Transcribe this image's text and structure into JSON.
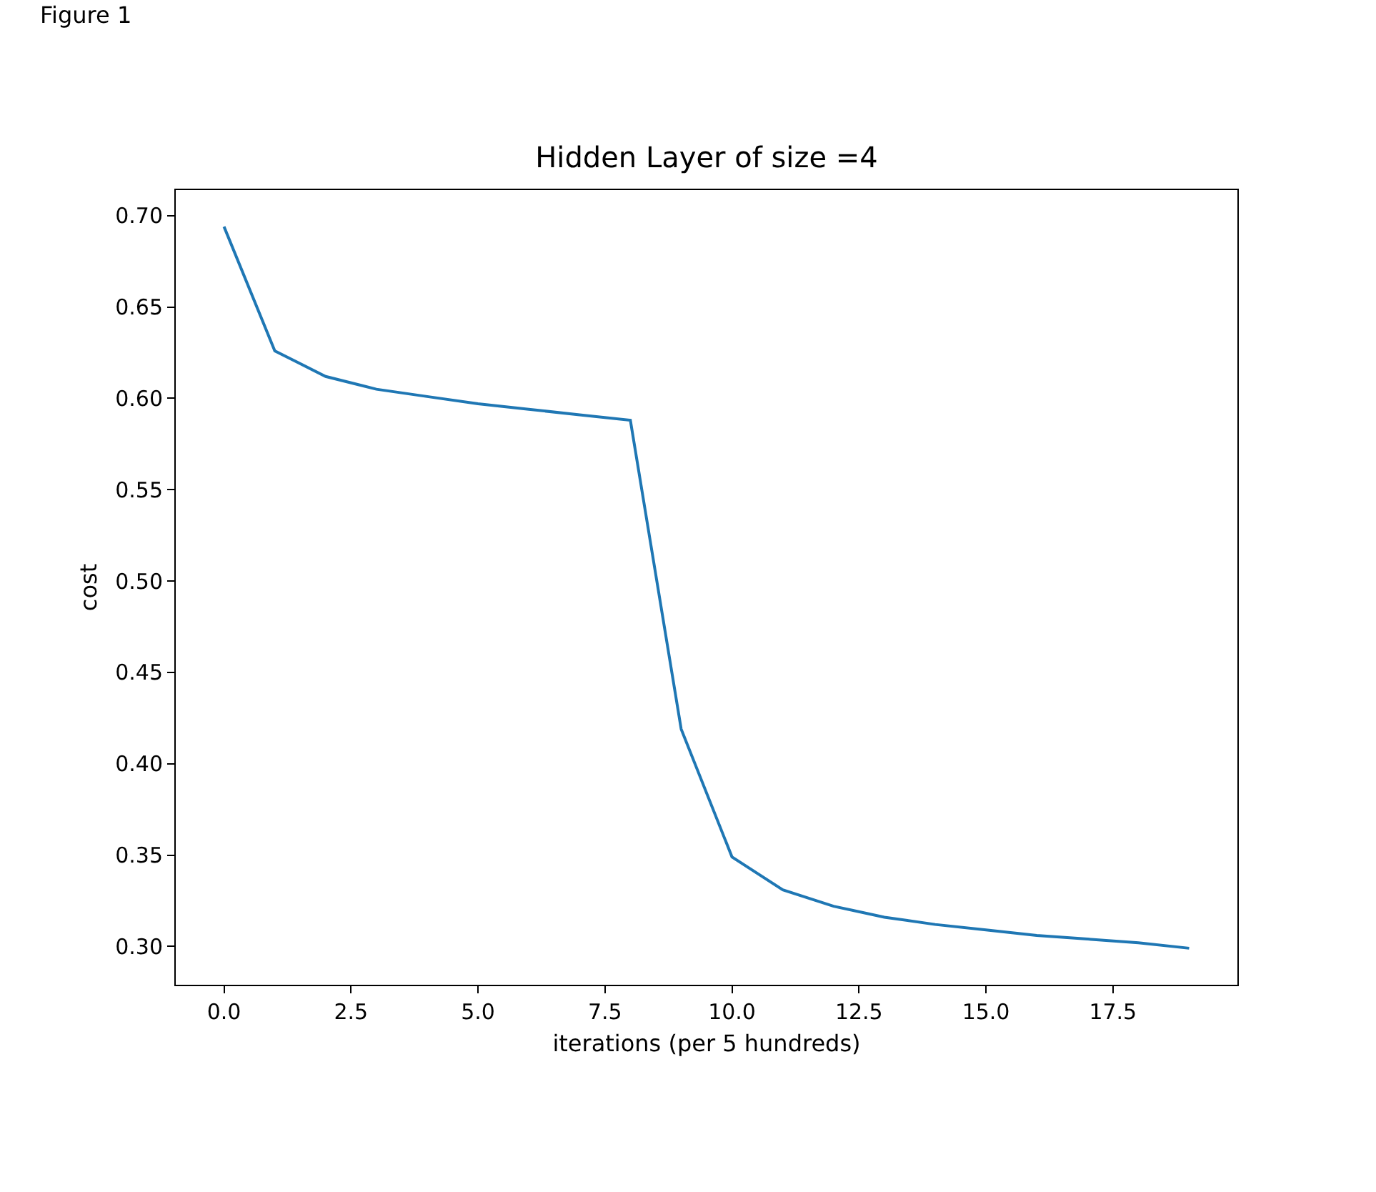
{
  "chart_data": {
    "type": "line",
    "title": "Hidden Layer of size =4",
    "xlabel": "iterations (per 5 hundreds)",
    "ylabel": "cost",
    "x": [
      0,
      1,
      2,
      3,
      4,
      5,
      6,
      7,
      8,
      9,
      10,
      11,
      12,
      13,
      14,
      15,
      16,
      17,
      18,
      19
    ],
    "series": [
      {
        "color": "#1f77b4",
        "values": [
          0.694,
          0.626,
          0.612,
          0.605,
          0.601,
          0.597,
          0.594,
          0.591,
          0.588,
          0.419,
          0.349,
          0.331,
          0.322,
          0.316,
          0.312,
          0.309,
          0.306,
          0.304,
          0.302,
          0.299
        ]
      }
    ],
    "xlim": [
      -0.95,
      19.95
    ],
    "ylim": [
      0.279,
      0.714
    ],
    "xticks": [
      {
        "value": 0,
        "label": "0.0"
      },
      {
        "value": 2.5,
        "label": "2.5"
      },
      {
        "value": 5,
        "label": "5.0"
      },
      {
        "value": 7.5,
        "label": "7.5"
      },
      {
        "value": 10,
        "label": "10.0"
      },
      {
        "value": 12.5,
        "label": "12.5"
      },
      {
        "value": 15,
        "label": "15.0"
      },
      {
        "value": 17.5,
        "label": "17.5"
      }
    ],
    "yticks": [
      {
        "value": 0.3,
        "label": "0.30"
      },
      0.35,
      {
        "value": 0.4,
        "label": "0.40"
      },
      0.45,
      {
        "value": 0.5,
        "label": "0.50"
      },
      0.55,
      {
        "value": 0.6,
        "label": "0.60"
      },
      0.65,
      {
        "value": 0.7,
        "label": "0.70"
      }
    ],
    "legend": false,
    "marker": "none",
    "line_style": "solid",
    "annotations": [
      "Figure 1"
    ]
  }
}
